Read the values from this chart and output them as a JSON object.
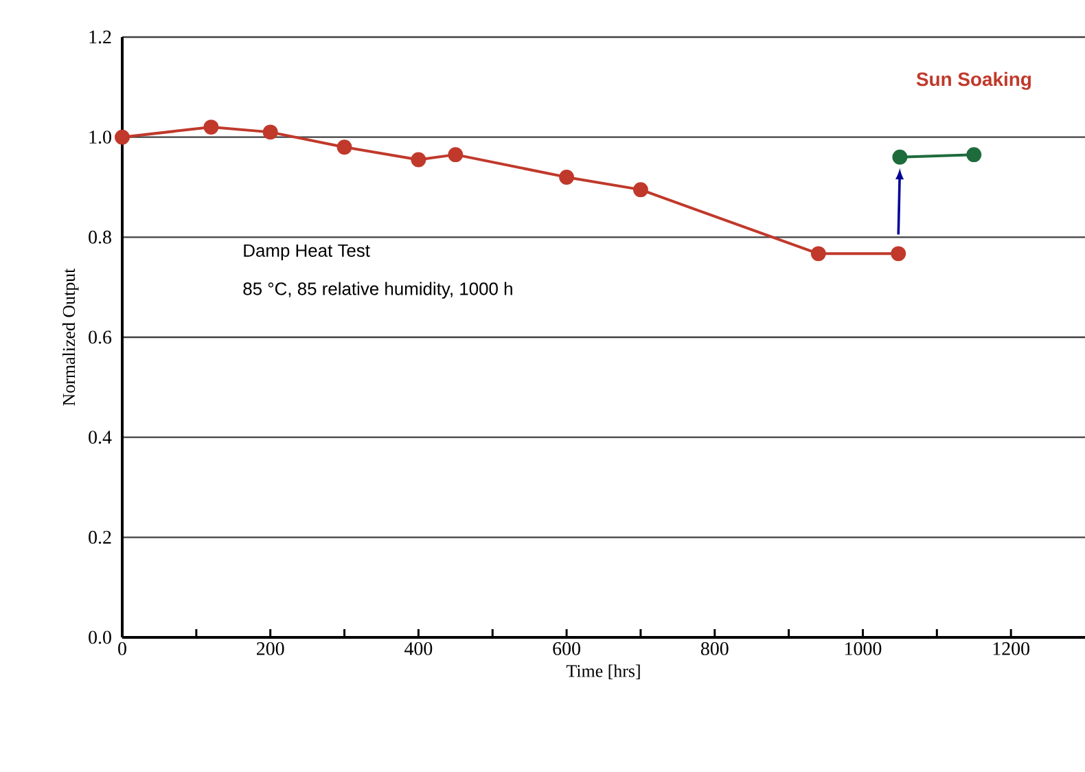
{
  "chart_data": {
    "type": "line",
    "xlabel": "Time [hrs]",
    "ylabel": "Normalized Output",
    "xlim": [
      0,
      1300
    ],
    "ylim": [
      0,
      1.2
    ],
    "xticks": [
      0,
      {
        "value": 100,
        "label": null
      },
      200,
      {
        "value": 300,
        "label": null
      },
      400,
      {
        "value": 500,
        "label": null
      },
      600,
      {
        "value": 700,
        "label": null
      },
      800,
      {
        "value": 900,
        "label": null
      },
      1000,
      {
        "value": 1100,
        "label": null
      },
      1200
    ],
    "yticks": [
      {
        "value": 0,
        "label": "0.0"
      },
      0.2,
      0.4,
      0.6,
      0.8,
      {
        "value": 1,
        "label": "1.0"
      },
      1.2
    ],
    "grid": "y",
    "marker": "circle",
    "line_style": "solid",
    "series": [
      {
        "color": "#c0392b",
        "x": [
          0,
          120,
          200,
          300,
          400,
          450,
          600,
          700,
          940,
          1048
        ],
        "values": [
          1.0,
          1.02,
          1.01,
          0.98,
          0.955,
          0.965,
          0.92,
          0.895,
          0.767,
          0.767
        ]
      },
      {
        "color": "#1e6b3c",
        "x": [
          1050,
          1150
        ],
        "values": [
          0.96,
          0.965
        ]
      }
    ],
    "annotations": [
      "Sun Soaking",
      "Damp Heat Test",
      "85 °C, 85 relative humidity, 1000 h"
    ]
  }
}
